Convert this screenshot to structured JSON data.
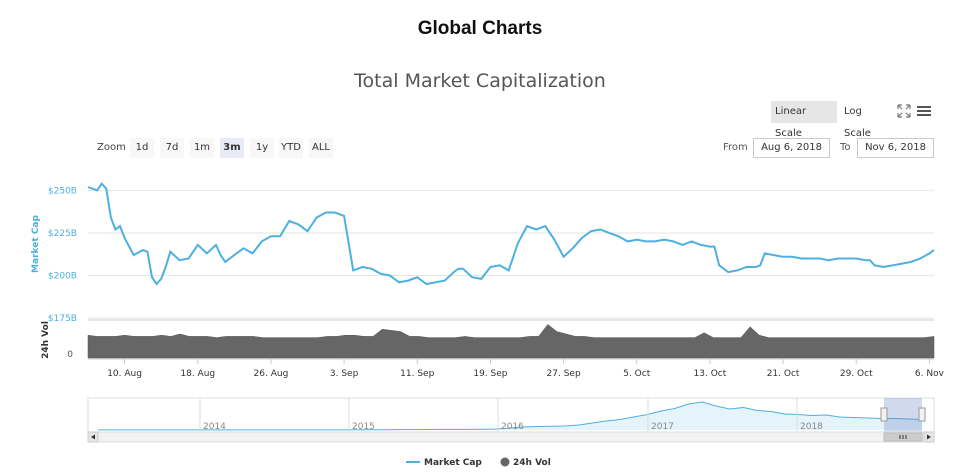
{
  "header": {
    "title": "Global Charts"
  },
  "toolbar": {
    "linear_label": "Linear Scale",
    "log_label": "Log Scale",
    "zoom_label": "Zoom",
    "zoom_buttons": [
      "1d",
      "7d",
      "1m",
      "3m",
      "1y",
      "YTD",
      "ALL"
    ],
    "zoom_active": "3m",
    "from_label": "From",
    "from_value": "Aug 6, 2018",
    "to_label": "To",
    "to_value": "Nov 6, 2018"
  },
  "colors": {
    "market_cap": "#4db0e0",
    "volume": "#666666",
    "navigator_fill": "#e5f3fb"
  },
  "chart_data": {
    "type": "line",
    "title": "Total Market Capitalization",
    "scale": "linear",
    "yaxis_cap": {
      "label": "Market Cap",
      "ticks": [
        "$250B",
        "$225B",
        "$200B",
        "$175B"
      ],
      "tick_values": [
        250,
        225,
        200,
        175
      ],
      "unit": "billion USD"
    },
    "yaxis_vol": {
      "label": "24h Vol",
      "ticks": [
        "0"
      ]
    },
    "xaxis": {
      "ticks": [
        "10. Aug",
        "18. Aug",
        "26. Aug",
        "3. Sep",
        "11. Sep",
        "19. Sep",
        "27. Sep",
        "5. Oct",
        "13. Oct",
        "21. Oct",
        "29. Oct",
        "6. Nov"
      ]
    },
    "series": [
      {
        "name": "Market Cap",
        "values": [
          [
            0,
            252
          ],
          [
            1,
            250
          ],
          [
            1.5,
            254
          ],
          [
            2,
            251
          ],
          [
            2.5,
            234
          ],
          [
            3,
            227
          ],
          [
            3.5,
            229
          ],
          [
            4,
            222
          ],
          [
            5,
            212
          ],
          [
            6,
            215
          ],
          [
            6.5,
            214
          ],
          [
            7,
            199
          ],
          [
            7.5,
            195
          ],
          [
            8,
            198
          ],
          [
            8.5,
            205
          ],
          [
            9,
            214
          ],
          [
            10,
            209
          ],
          [
            11,
            210
          ],
          [
            12,
            218
          ],
          [
            13,
            213
          ],
          [
            14,
            218
          ],
          [
            14.5,
            212
          ],
          [
            15,
            208
          ],
          [
            16,
            212
          ],
          [
            17,
            216
          ],
          [
            18,
            213
          ],
          [
            19,
            220
          ],
          [
            20,
            223
          ],
          [
            21,
            223
          ],
          [
            22,
            232
          ],
          [
            23,
            230
          ],
          [
            24,
            226
          ],
          [
            25,
            234
          ],
          [
            26,
            237
          ],
          [
            27,
            237
          ],
          [
            27.5,
            236
          ],
          [
            28,
            235
          ],
          [
            29,
            203
          ],
          [
            30,
            205
          ],
          [
            31,
            204
          ],
          [
            32,
            201
          ],
          [
            33,
            200
          ],
          [
            34,
            196
          ],
          [
            35,
            197
          ],
          [
            36,
            199
          ],
          [
            37,
            195
          ],
          [
            38,
            196
          ],
          [
            39,
            197
          ],
          [
            40,
            202
          ],
          [
            40.5,
            204
          ],
          [
            41,
            204
          ],
          [
            42,
            199
          ],
          [
            43,
            198
          ],
          [
            44,
            205
          ],
          [
            45,
            206
          ],
          [
            46,
            203
          ],
          [
            47,
            219
          ],
          [
            48,
            229
          ],
          [
            49,
            227
          ],
          [
            50,
            229
          ],
          [
            51,
            221
          ],
          [
            52,
            211
          ],
          [
            53,
            216
          ],
          [
            54,
            222
          ],
          [
            55,
            226
          ],
          [
            56,
            227
          ],
          [
            57,
            225
          ],
          [
            58,
            223
          ],
          [
            59,
            220
          ],
          [
            60,
            221
          ],
          [
            61,
            220
          ],
          [
            62,
            220
          ],
          [
            63,
            221
          ],
          [
            64,
            220
          ],
          [
            65,
            218
          ],
          [
            66,
            220
          ],
          [
            67,
            218
          ],
          [
            68,
            217
          ],
          [
            68.5,
            217
          ],
          [
            69,
            206
          ],
          [
            70,
            202
          ],
          [
            71,
            203
          ],
          [
            72,
            205
          ],
          [
            73,
            205
          ],
          [
            73.5,
            206
          ],
          [
            74,
            213
          ],
          [
            75,
            212
          ],
          [
            76,
            211
          ],
          [
            77,
            211
          ],
          [
            78,
            210
          ],
          [
            79,
            210
          ],
          [
            80,
            210
          ],
          [
            81,
            209
          ],
          [
            82,
            210
          ],
          [
            83,
            210
          ],
          [
            84,
            210
          ],
          [
            85,
            209
          ],
          [
            85.5,
            209
          ],
          [
            86,
            206
          ],
          [
            87,
            205
          ],
          [
            88,
            206
          ],
          [
            89,
            207
          ],
          [
            90,
            208
          ],
          [
            91,
            210
          ],
          [
            92,
            213
          ],
          [
            92.5,
            215
          ]
        ]
      },
      {
        "name": "24h Vol",
        "values": [
          9.5,
          9.0,
          9.0,
          9.0,
          9.5,
          9.0,
          9.0,
          9.0,
          9.5,
          9.0,
          10.0,
          9.0,
          9.0,
          9.0,
          8.5,
          9.0,
          9.0,
          9.0,
          9.0,
          8.5,
          8.5,
          8.5,
          8.5,
          8.5,
          8.5,
          8.5,
          9.0,
          9.0,
          9.5,
          9.5,
          9.0,
          9.0,
          12.0,
          11.5,
          11.0,
          9.0,
          9.0,
          8.5,
          8.5,
          8.5,
          8.5,
          9.0,
          8.5,
          8.5,
          8.5,
          8.5,
          8.5,
          8.5,
          9.0,
          9.0,
          14.0,
          11.0,
          10.0,
          9.0,
          9.0,
          8.5,
          8.5,
          8.5,
          8.5,
          8.5,
          8.5,
          8.5,
          8.5,
          8.5,
          8.5,
          8.5,
          8.5,
          10.5,
          8.5,
          8.5,
          8.5,
          8.5,
          13.0,
          9.5,
          8.5,
          8.5,
          8.5,
          8.5,
          8.5,
          8.5,
          8.5,
          8.5,
          8.5,
          8.5,
          8.5,
          8.5,
          8.5,
          8.5,
          8.5,
          8.5,
          8.5,
          8.5,
          9.0
        ]
      }
    ],
    "navigator": {
      "ticks": [
        "2014",
        "2015",
        "2016",
        "2017",
        "2018"
      ],
      "values": [
        1,
        1,
        1,
        1,
        1,
        1,
        1,
        1,
        1,
        1,
        1,
        1,
        1,
        1,
        2,
        2,
        2,
        2,
        3,
        4,
        5,
        6,
        8,
        9,
        10,
        11,
        12,
        12,
        16,
        20,
        40,
        60,
        70,
        75,
        80,
        100,
        140,
        180,
        210,
        260,
        310,
        380,
        430,
        520,
        560,
        480,
        420,
        450,
        390,
        370,
        320,
        310,
        290,
        300,
        260,
        250,
        240,
        230,
        230,
        220,
        210
      ]
    },
    "legend": {
      "position": "bottom-center",
      "entries": [
        "Market Cap",
        "24h Vol"
      ]
    },
    "grid": true
  }
}
